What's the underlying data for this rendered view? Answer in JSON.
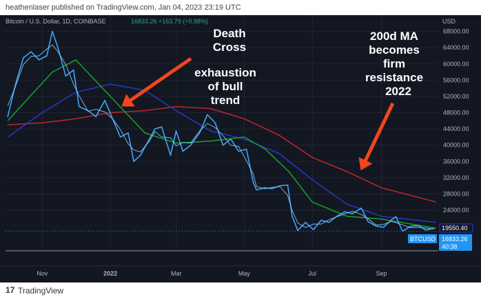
{
  "header": {
    "publish_line": "heathenlaser published on TradingView.com, Jan 04, 2023 23:19 UTC"
  },
  "footer": {
    "logo_mark": "17",
    "brand": "TradingView"
  },
  "legend": {
    "symbol": "Bitcoin / U.S. Dollar, 1D, COINBASE",
    "price": "16833.26",
    "change": "+163.79 (+0.98%)"
  },
  "price_tags": {
    "ma_tag": "19550.40",
    "ticker_tag": "BTCUSD",
    "ticker_price": "16833.26",
    "countdown": "40:38"
  },
  "annotations": {
    "death_cross_line1": "Death",
    "death_cross_line2": "Cross",
    "exhaustion_line1": "exhaustion",
    "exhaustion_line2": "of bull",
    "exhaustion_line3": "trend",
    "ma200_line1": "200d MA",
    "ma200_line2": "becomes",
    "ma200_line3": "firm",
    "ma200_line4": "resistance",
    "ma200_line5": "2022"
  },
  "colors": {
    "background": "#131722",
    "grid": "#1f2533",
    "price": "#42a5f5",
    "price_fast": "#81c7f5",
    "ma50": "#16a52a",
    "ma100": "#2a37c8",
    "ma200": "#c0262a",
    "arrow": "#f2461e",
    "text": "#b2b5be",
    "white": "#ffffff"
  },
  "chart_data": {
    "type": "line",
    "y_axis_unit": "USD",
    "ylim": [
      14000,
      72000
    ],
    "y_ticks": [
      24000,
      28000,
      32000,
      36000,
      40000,
      44000,
      48000,
      52000,
      56000,
      60000,
      64000,
      68000
    ],
    "x_ticks": [
      {
        "label": "Nov",
        "date": "2021-11-01"
      },
      {
        "label": "2022",
        "date": "2022-01-01",
        "bold": true
      },
      {
        "label": "Mar",
        "date": "2022-03-01"
      },
      {
        "label": "May",
        "date": "2022-05-01"
      },
      {
        "label": "Jul",
        "date": "2022-07-01"
      },
      {
        "label": "Sep",
        "date": "2022-09-01"
      }
    ],
    "x_range": [
      "2021-09-29",
      "2022-10-22"
    ],
    "grid": true,
    "series": [
      {
        "id": "price",
        "x": [
          "2021-10-01",
          "2021-10-08",
          "2021-10-15",
          "2021-10-22",
          "2021-10-29",
          "2021-11-05",
          "2021-11-10",
          "2021-11-15",
          "2021-11-22",
          "2021-11-29",
          "2021-12-04",
          "2021-12-12",
          "2021-12-19",
          "2021-12-27",
          "2022-01-03",
          "2022-01-10",
          "2022-01-17",
          "2022-01-22",
          "2022-01-28",
          "2022-02-05",
          "2022-02-10",
          "2022-02-16",
          "2022-02-24",
          "2022-03-01",
          "2022-03-07",
          "2022-03-14",
          "2022-03-22",
          "2022-03-29",
          "2022-04-05",
          "2022-04-12",
          "2022-04-19",
          "2022-04-26",
          "2022-05-03",
          "2022-05-09",
          "2022-05-12",
          "2022-05-19",
          "2022-05-26",
          "2022-06-02",
          "2022-06-09",
          "2022-06-13",
          "2022-06-18",
          "2022-06-25",
          "2022-07-02",
          "2022-07-09",
          "2022-07-16",
          "2022-07-23",
          "2022-07-30",
          "2022-08-06",
          "2022-08-14",
          "2022-08-20",
          "2022-08-27",
          "2022-09-03",
          "2022-09-10",
          "2022-09-14",
          "2022-09-20",
          "2022-09-27",
          "2022-10-04",
          "2022-10-11",
          "2022-10-18"
        ],
        "y": [
          47000,
          55000,
          61500,
          63000,
          61000,
          62000,
          68000,
          64000,
          57000,
          58500,
          49500,
          48500,
          47000,
          51000,
          46500,
          42000,
          43000,
          36000,
          37500,
          41500,
          44000,
          44500,
          37500,
          43500,
          38500,
          40000,
          43000,
          47500,
          45500,
          40000,
          41500,
          38500,
          39000,
          31000,
          29000,
          29500,
          29300,
          30000,
          30200,
          22500,
          19000,
          21000,
          19200,
          21500,
          21000,
          22500,
          23600,
          23100,
          24500,
          21200,
          20100,
          19800,
          21600,
          22400,
          18800,
          20000,
          20200,
          19100,
          19500
        ]
      },
      {
        "id": "ma50",
        "x": [
          "2021-10-01",
          "2021-11-10",
          "2021-12-01",
          "2022-01-01",
          "2022-02-01",
          "2022-03-01",
          "2022-04-01",
          "2022-05-01",
          "2022-05-20",
          "2022-06-10",
          "2022-07-01",
          "2022-08-01",
          "2022-09-01",
          "2022-10-20"
        ],
        "y": [
          46000,
          58000,
          61000,
          52000,
          43000,
          40500,
          41000,
          42000,
          39000,
          33500,
          26000,
          22500,
          21800,
          19550
        ]
      },
      {
        "id": "ma100",
        "x": [
          "2021-10-01",
          "2021-11-01",
          "2021-12-01",
          "2022-01-01",
          "2022-02-01",
          "2022-03-01",
          "2022-04-01",
          "2022-05-01",
          "2022-06-01",
          "2022-07-01",
          "2022-08-01",
          "2022-09-01",
          "2022-10-20"
        ],
        "y": [
          42000,
          48000,
          53000,
          55000,
          53500,
          48500,
          43500,
          41500,
          38000,
          31500,
          25500,
          22500,
          21000
        ]
      },
      {
        "id": "ma200",
        "x": [
          "2021-10-01",
          "2021-11-01",
          "2021-12-01",
          "2022-01-01",
          "2022-02-01",
          "2022-03-01",
          "2022-04-01",
          "2022-05-01",
          "2022-06-01",
          "2022-07-01",
          "2022-08-01",
          "2022-09-01",
          "2022-10-20"
        ],
        "y": [
          45000,
          45500,
          46500,
          48000,
          48500,
          49500,
          49000,
          46500,
          42500,
          37000,
          33500,
          29500,
          26000
        ]
      }
    ]
  }
}
